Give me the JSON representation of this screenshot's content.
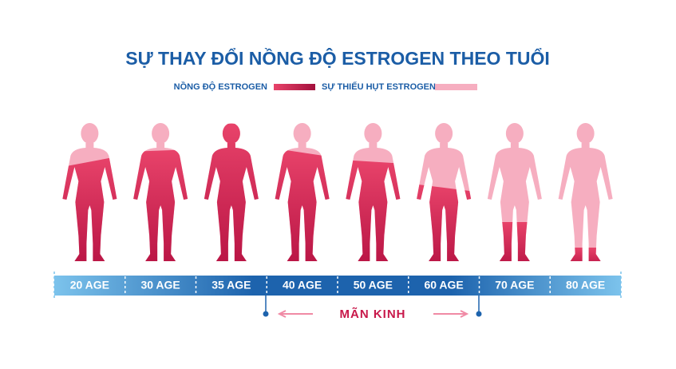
{
  "header": {
    "title": "SỰ THAY ĐỔI NỒNG ĐỘ ESTROGEN THEO TUỔI"
  },
  "legend": [
    "NỒNG ĐỘ ESTROGEN",
    "SỰ THIẾU HỤT ESTROGEN"
  ],
  "ages": [
    "20 AGE",
    "30 AGE",
    "35 AGE",
    "40 AGE",
    "50 AGE",
    "60 AGE",
    "70 AGE",
    "80 AGE"
  ],
  "menopause": "MÃN KINH"
}
